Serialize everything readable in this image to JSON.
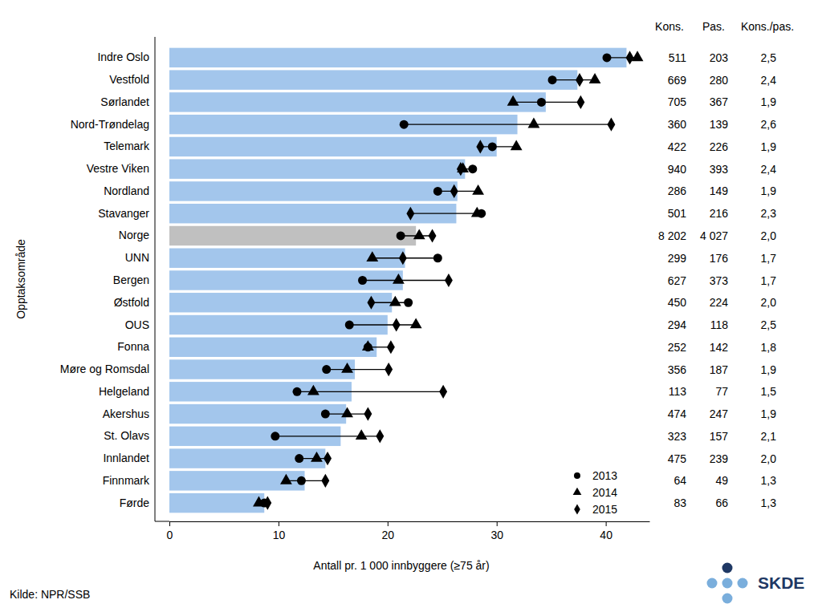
{
  "chart_data": {
    "type": "bar",
    "orientation": "horizontal",
    "xlabel": "Antall pr. 1 000 innbyggere (≥75 år)",
    "ylabel": "Opptaksområde",
    "source": "Kilde: NPR/SSB",
    "logo": "SKDE",
    "xlim": [
      0,
      44
    ],
    "xticks": [
      0,
      10,
      20,
      30,
      40
    ],
    "legend": "lower right",
    "categories": [
      "Indre Oslo",
      "Vestfold",
      "Sørlandet",
      "Nord-Trøndelag",
      "Telemark",
      "Vestre Viken",
      "Nordland",
      "Stavanger",
      "Norge",
      "UNN",
      "Bergen",
      "Østfold",
      "OUS",
      "Fonna",
      "Møre og Romsdal",
      "Helgeland",
      "Akershus",
      "St. Olavs",
      "Innlandet",
      "Finnmark",
      "Førde"
    ],
    "values": [
      41.9,
      37.4,
      34.5,
      31.9,
      30.0,
      27.1,
      26.4,
      26.3,
      22.6,
      21.6,
      21.4,
      20.4,
      20.0,
      19.0,
      17.0,
      16.7,
      16.2,
      15.7,
      14.3,
      12.4,
      8.7
    ],
    "colors": [
      "#a3c6ec",
      "#a3c6ec",
      "#a3c6ec",
      "#a3c6ec",
      "#a3c6ec",
      "#a3c6ec",
      "#a3c6ec",
      "#a3c6ec",
      "#c0c0c0",
      "#a3c6ec",
      "#a3c6ec",
      "#a3c6ec",
      "#a3c6ec",
      "#a3c6ec",
      "#a3c6ec",
      "#a3c6ec",
      "#a3c6ec",
      "#a3c6ec",
      "#a3c6ec",
      "#a3c6ec",
      "#a3c6ec"
    ],
    "series": [
      {
        "name": "2013",
        "type": "scatter",
        "marker": "circle",
        "color": "#000000",
        "values": [
          40.1,
          35.1,
          34.1,
          21.5,
          29.6,
          27.8,
          24.6,
          28.6,
          21.2,
          24.6,
          17.7,
          21.9,
          16.5,
          18.2,
          14.4,
          11.7,
          14.3,
          9.7,
          11.9,
          12.1,
          8.7
        ]
      },
      {
        "name": "2014",
        "type": "scatter",
        "marker": "triangle",
        "color": "#000000",
        "values": [
          42.9,
          39.0,
          31.5,
          33.4,
          31.8,
          26.9,
          28.3,
          28.2,
          22.9,
          18.6,
          21.0,
          20.7,
          22.6,
          18.2,
          16.3,
          13.2,
          16.3,
          17.6,
          13.5,
          10.7,
          8.2
        ]
      },
      {
        "name": "2015",
        "type": "scatter",
        "marker": "diamond",
        "color": "#000000",
        "values": [
          42.2,
          37.6,
          37.7,
          40.5,
          28.5,
          26.7,
          26.1,
          22.1,
          24.1,
          21.4,
          25.6,
          18.5,
          20.8,
          20.3,
          20.1,
          25.1,
          18.2,
          19.3,
          14.5,
          14.3,
          9.0
        ]
      }
    ],
    "table": {
      "columns": [
        {
          "name": "Kons.",
          "values": [
            511,
            669,
            705,
            360,
            422,
            940,
            286,
            501,
            8202,
            299,
            627,
            450,
            294,
            252,
            356,
            113,
            474,
            323,
            475,
            64,
            83
          ],
          "value_labels": [
            "511",
            "669",
            "705",
            "360",
            "422",
            "940",
            "286",
            "501",
            "8 202",
            "299",
            "627",
            "450",
            "294",
            "252",
            "356",
            "113",
            "474",
            "323",
            "475",
            "64",
            "83"
          ]
        },
        {
          "name": "Pas.",
          "values": [
            203,
            280,
            367,
            139,
            226,
            393,
            149,
            216,
            4027,
            176,
            373,
            224,
            118,
            142,
            187,
            77,
            247,
            157,
            239,
            49,
            66
          ],
          "value_labels": [
            "203",
            "280",
            "367",
            "139",
            "226",
            "393",
            "149",
            "216",
            "4 027",
            "176",
            "373",
            "224",
            "118",
            "142",
            "187",
            "77",
            "247",
            "157",
            "239",
            "49",
            "66"
          ]
        },
        {
          "name": "Kons./pas.",
          "values": [
            2.5,
            2.4,
            1.9,
            2.6,
            1.9,
            2.4,
            1.9,
            2.3,
            2.0,
            1.7,
            1.7,
            2.0,
            2.5,
            1.8,
            1.9,
            1.5,
            1.9,
            2.1,
            2.0,
            1.3,
            1.3
          ],
          "value_labels": [
            "2,5",
            "2,4",
            "1,9",
            "2,6",
            "1,9",
            "2,4",
            "1,9",
            "2,3",
            "2,0",
            "1,7",
            "1,7",
            "2,0",
            "2,5",
            "1,8",
            "1,9",
            "1,5",
            "1,9",
            "2,1",
            "2,0",
            "1,3",
            "1,3"
          ]
        }
      ]
    }
  }
}
